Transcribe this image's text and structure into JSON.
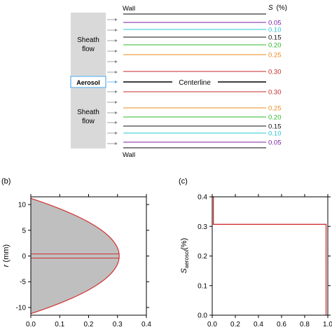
{
  "schematic": {
    "wall_label": "Wall",
    "centerline_label": "Centerline",
    "aerosol_label": "Aerosol",
    "sheath_label_line1": "Sheath",
    "sheath_label_line2": "flow",
    "s_header_symbol": "S",
    "s_header_unit": "(%)",
    "upper_lines": [
      {
        "label": "0.05",
        "color": "#7b1fa2"
      },
      {
        "label": "0.10",
        "color": "#2ec4d6"
      },
      {
        "label": "0.15",
        "color": "#111111"
      },
      {
        "label": "0.20",
        "color": "#2db82d"
      },
      {
        "label": "0.25",
        "color": "#ef8a1f"
      },
      {
        "label": "0.30",
        "color": "#c62828"
      }
    ],
    "lower_lines": [
      {
        "label": "0.30",
        "color": "#c62828"
      },
      {
        "label": "0.25",
        "color": "#ef8a1f"
      },
      {
        "label": "0.20",
        "color": "#2db82d"
      },
      {
        "label": "0.15",
        "color": "#111111"
      },
      {
        "label": "0.10",
        "color": "#2ec4d6"
      },
      {
        "label": "0.05",
        "color": "#7b1fa2"
      }
    ],
    "aerosol_box_color": "#5aa9e6",
    "sheath_fill_color": "#d9d9d9"
  },
  "chart_data": [
    {
      "panel": "(b)",
      "type": "area",
      "xlim": [
        0.0,
        0.4
      ],
      "ylim": [
        -11.5,
        11.5
      ],
      "x_ticks": [
        "0.0",
        "0.1",
        "0.2",
        "0.3",
        "0.4"
      ],
      "y_ticks": [
        "-10",
        "-5",
        "0",
        "5",
        "10"
      ],
      "ylabel_symbol": "r",
      "ylabel_unit": " (mm)",
      "r_wall": 11.2,
      "s_max": 0.306,
      "profile": "parabolic",
      "fill_color": "#bfbfbf",
      "line_color": "#d32f2f"
    },
    {
      "panel": "(c)",
      "type": "line",
      "xlim": [
        0.0,
        1.0
      ],
      "ylim": [
        0.0,
        0.4
      ],
      "x_ticks": [
        "0.0",
        "0.2",
        "0.4",
        "0.6",
        "0.8",
        "1.0"
      ],
      "y_ticks": [
        "0.0",
        "0.1",
        "0.2",
        "0.3",
        "0.4"
      ],
      "ylabel_symbol": "S",
      "ylabel_sub": "aerosol",
      "ylabel_unit": "(%)",
      "x": [
        0.0,
        0.0,
        0.01,
        0.01,
        0.985,
        0.985
      ],
      "y": [
        0.4,
        0.4,
        0.4,
        0.307,
        0.307,
        0.0
      ],
      "line_color": "#d32f2f"
    }
  ]
}
